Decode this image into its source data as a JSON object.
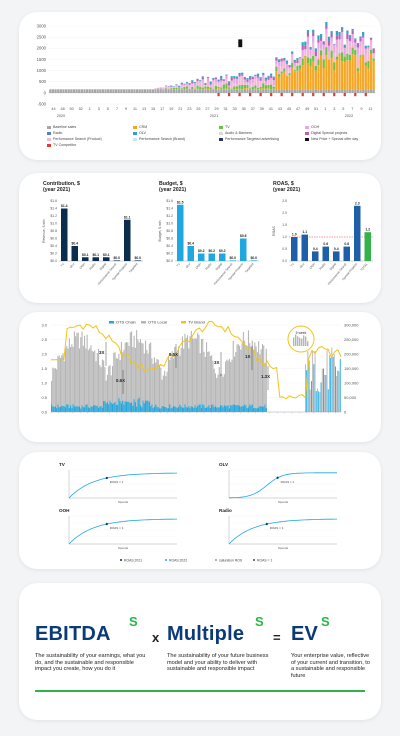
{
  "stacked_chart": {
    "y_ticks": [
      "3000",
      "2500",
      "2000",
      "1500",
      "1000",
      "500",
      "0",
      "-500"
    ],
    "x_ticks": [
      "44",
      "48",
      "50",
      "52",
      "1",
      "3",
      "5",
      "7",
      "9",
      "11",
      "13",
      "15",
      "17",
      "19",
      "21",
      "23",
      "25",
      "27",
      "29",
      "31",
      "33",
      "35",
      "37",
      "39",
      "41",
      "43",
      "45",
      "47",
      "49",
      "51",
      "1",
      "3",
      "5",
      "7",
      "9",
      "11"
    ],
    "years": [
      "2020",
      "2021",
      "2022"
    ],
    "legend": [
      {
        "label": "Baseline sales",
        "color": "#a6a6a6"
      },
      {
        "label": "CRM",
        "color": "#f5a623"
      },
      {
        "label": "TV",
        "color": "#6cc04a"
      },
      {
        "label": "OOH",
        "color": "#e6a8e6"
      },
      {
        "label": "Radio",
        "color": "#5b7fc7"
      },
      {
        "label": "OLV",
        "color": "#2fa4c8"
      },
      {
        "label": "Audio & Banners",
        "color": "#d9d9d9"
      },
      {
        "label": "Digital Special projects",
        "color": "#b266b2"
      },
      {
        "label": "Performance Search (Product)",
        "color": "#f2b8d8"
      },
      {
        "label": "Performance Search (Brand)",
        "color": "#c9e6f5"
      },
      {
        "label": "Performance Targeted advertising",
        "color": "#1f3864"
      },
      {
        "label": "New Price + Special offer day",
        "color": "#111111"
      },
      {
        "label": "TV Competitor",
        "color": "#e03c31"
      }
    ]
  },
  "chart_data": [
    {
      "type": "bar",
      "title": "Contribution, $\n(year 2021)",
      "ylabel": "Revenue, $ mln",
      "categories": [
        "TV",
        "OLV",
        "OOH",
        "Radio",
        "Digital",
        "Performance Search",
        "Special Projects",
        "Targeted"
      ],
      "values": [
        1.4,
        0.4,
        0.1,
        0.1,
        0.1,
        0.0,
        1.1,
        0.0
      ],
      "labels": [
        "$1.4",
        "$0.4",
        "$0.1",
        "$0.1",
        "$0.1",
        "$0.0",
        "$1.1",
        "$0.0"
      ],
      "colors": [
        "#0b2e4f",
        "#0b2e4f",
        "#0b2e4f",
        "#0b2e4f",
        "#0b2e4f",
        "#0b2e4f",
        "#0b2e4f",
        "#0b2e4f"
      ],
      "y_ticks": [
        "$1.6",
        "$1.4",
        "$1.2",
        "$1.0",
        "$0.8",
        "$0.6",
        "$0.4",
        "$0.2",
        "$0.0"
      ],
      "ylim": [
        0,
        1.6
      ]
    },
    {
      "type": "bar",
      "title": "Budget, $\n(year 2021)",
      "ylabel": "Budget, $ mln",
      "categories": [
        "TV",
        "OLV",
        "OOH",
        "Radio",
        "Digital",
        "Performance Search",
        "Special Projects",
        "Targeted"
      ],
      "values": [
        1.5,
        0.4,
        0.2,
        0.2,
        0.2,
        0.0,
        0.6,
        0.0
      ],
      "labels": [
        "$1.5",
        "$0.4",
        "$0.2",
        "$0.2",
        "$0.2",
        "$0.0",
        "$0.6",
        "$0.0"
      ],
      "colors": [
        "#1fa8e0",
        "#1fa8e0",
        "#1fa8e0",
        "#1fa8e0",
        "#1fa8e0",
        "#1fa8e0",
        "#1fa8e0",
        "#1fa8e0"
      ],
      "y_ticks": [
        "$1.6",
        "$1.4",
        "$1.2",
        "$1.0",
        "$0.8",
        "$0.6",
        "$0.4",
        "$0.2",
        "$0.0"
      ],
      "ylim": [
        0,
        1.6
      ]
    },
    {
      "type": "bar",
      "title": "ROAS, $\n(year 2021)",
      "ylabel": "ROAS",
      "categories": [
        "TV",
        "OLV",
        "OOH",
        "Radio",
        "Digital",
        "Performance Search",
        "Special Projects",
        "TOTAL"
      ],
      "values": [
        1.0,
        1.1,
        0.4,
        0.6,
        0.4,
        0.6,
        2.3,
        1.2
      ],
      "labels": [
        "1.0",
        "1.1",
        "0.4",
        "0.6",
        "0.4",
        "0.6",
        "2.3",
        "1.2"
      ],
      "colors": [
        "#1f5fa8",
        "#1f5fa8",
        "#1f5fa8",
        "#1f5fa8",
        "#1f5fa8",
        "#1f5fa8",
        "#1f5fa8",
        "#34b24a"
      ],
      "y_ticks": [
        "2.5",
        "2.0",
        "1.5",
        "1.0",
        "0.5",
        "0.0"
      ],
      "ylim": [
        0,
        2.5
      ]
    }
  ],
  "time_series": {
    "legend": [
      "OTS Chain",
      "OTS Local",
      "TV Brand"
    ],
    "left_ticks": [
      "3.0",
      "2.5",
      "2.0",
      "1.5",
      "1.0",
      "0.5",
      "0.0"
    ],
    "right_ticks": [
      "300,000",
      "250,000",
      "200,000",
      "150,000",
      "100,000",
      "50,000",
      "0"
    ],
    "annotations": [
      "3X",
      "0.6X",
      "5.5X",
      "3X",
      "1X",
      "1.3X"
    ],
    "inset_label": "5 week",
    "colors": {
      "grey": "#b5b5b5",
      "blue": "#1fa8e0",
      "gold": "#f0c419"
    }
  },
  "response_curves": {
    "panels": [
      "TV",
      "OLV",
      "OOH",
      "Radio"
    ],
    "x_label": "Spends",
    "marker_label": "ROAS = 1",
    "footer": [
      "ROAS 2021",
      "ROAS 2022",
      "saturation ROS",
      "ROAS = 1"
    ]
  },
  "equation": {
    "ebitda": "EBITDA",
    "multiple": "Multiple",
    "ev": "EV",
    "sup": "S",
    "times": "x",
    "equals": "=",
    "ebitda_desc": "The sustainability of your earnings, what you do, and the sustainable and responsible impact you create, how you do it",
    "multiple_desc": "The sustainability of your future business model and your ability to deliver with sustainable and responsible impact",
    "ev_desc": "Your enterprise value, reflective of your current and transition, to a sustainable and responsible future"
  }
}
